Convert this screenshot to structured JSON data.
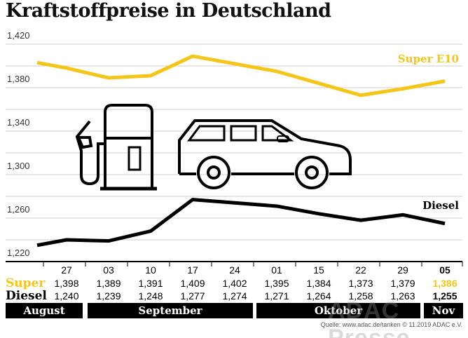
{
  "title": "Kraftstoffpreise in Deutschland",
  "colors": {
    "super": "#f5c518",
    "diesel": "#000000",
    "grid": "#cccccc"
  },
  "icons": [
    "fuel-pump-icon",
    "car-icon"
  ],
  "chart_data": {
    "type": "line",
    "title": "Kraftstoffpreise in Deutschland",
    "ylim": [
      1220,
      1420
    ],
    "yticks": [
      "1,420",
      "1,380",
      "1,340",
      "1,300",
      "1,260",
      "1,220"
    ],
    "ytick_values": [
      1420,
      1380,
      1340,
      1300,
      1260,
      1220
    ],
    "grid": true,
    "categories": [
      "",
      "27",
      "03",
      "10",
      "17",
      "24",
      "01",
      "15",
      "22",
      "29",
      "05"
    ],
    "series": [
      {
        "name": "Super E10",
        "color": "#f5c518",
        "values": [
          1.403,
          1.398,
          1.389,
          1.391,
          1.409,
          1.402,
          1.395,
          1.384,
          1.373,
          1.379,
          1.386
        ]
      },
      {
        "name": "Diesel",
        "color": "#000000",
        "values": [
          1.235,
          1.24,
          1.239,
          1.248,
          1.277,
          1.274,
          1.271,
          1.264,
          1.258,
          1.263,
          1.255
        ]
      }
    ]
  },
  "table": {
    "dates": [
      "27",
      "03",
      "10",
      "17",
      "24",
      "01",
      "15",
      "22",
      "29",
      "05"
    ],
    "super_label": "Super",
    "diesel_label": "Diesel",
    "super": [
      "1,398",
      "1,389",
      "1,391",
      "1,409",
      "1,402",
      "1,395",
      "1,384",
      "1,373",
      "1,379",
      "1,386"
    ],
    "diesel": [
      "1,240",
      "1,239",
      "1,248",
      "1,277",
      "1,274",
      "1,271",
      "1,264",
      "1,258",
      "1,263",
      "1,255"
    ]
  },
  "months": [
    "August",
    "September",
    "Oktober",
    "Nov"
  ],
  "source": "Quelle: www.adac.de/tanken   © 11.2019  ADAC e.V.",
  "watermark": "ADAC Presse"
}
